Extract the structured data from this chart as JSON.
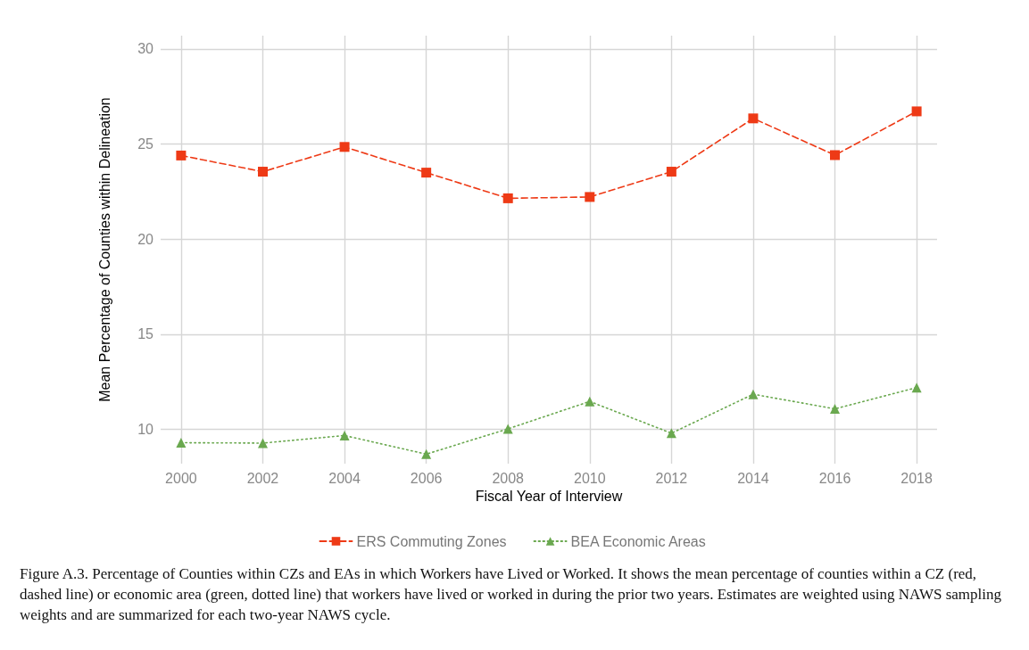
{
  "chart_data": {
    "type": "line",
    "xlabel": "Fiscal Year of Interview",
    "ylabel": "Mean Percentage of Counties within Delineation",
    "x": [
      2000,
      2002,
      2004,
      2006,
      2008,
      2010,
      2012,
      2014,
      2016,
      2018
    ],
    "series": [
      {
        "name": "ERS Commuting Zones",
        "color": "#ee3a16",
        "marker": "square",
        "line_style": "dashed",
        "values": [
          24.4,
          23.55,
          24.85,
          23.5,
          22.15,
          22.22,
          23.55,
          26.35,
          24.42,
          26.72
        ]
      },
      {
        "name": "BEA Economic Areas",
        "color": "#6aa84f",
        "marker": "triangle",
        "line_style": "dotted",
        "values": [
          9.3,
          9.28,
          9.68,
          8.7,
          10.03,
          11.47,
          9.8,
          11.85,
          11.08,
          12.2
        ]
      }
    ],
    "xlim": [
      1999.5,
      2018.5
    ],
    "xticks": [
      2000,
      2002,
      2004,
      2006,
      2008,
      2010,
      2012,
      2014,
      2016,
      2018
    ],
    "ylim": [
      8.2,
      30.7
    ],
    "yticks": [
      10,
      15,
      20,
      25,
      30
    ],
    "grid": true,
    "legend": "bottom",
    "annotations": [
      "Figure A.3. Percentage of Counties within CZs and EAs in which Workers have Lived or Worked. It shows the mean percentage of counties within a CZ (red, dashed line) or economic area (green, dotted line) that workers have lived or worked in during the prior two years. Estimates are weighted using NAWS sampling weights and are summarized for each two-year NAWS cycle."
    ]
  }
}
